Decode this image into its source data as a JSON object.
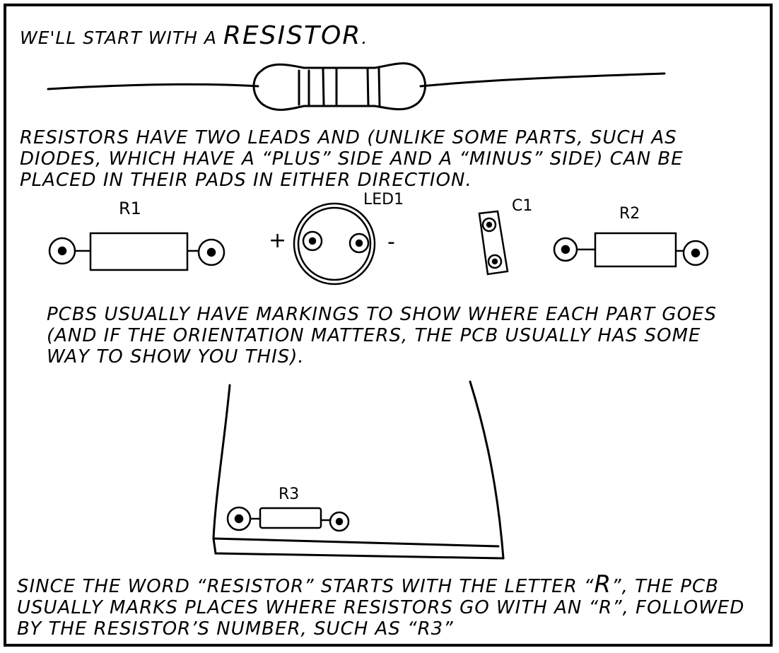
{
  "panel": {
    "line1_prefix": "WE'LL START WITH A ",
    "line1_emphasis": "RESISTOR",
    "line1_suffix": ".",
    "paragraph2": "RESISTORS HAVE TWO LEADS AND (UNLIKE SOME PARTS, SUCH AS DIODES, WHICH HAVE A “PLUS” SIDE AND A “MINUS” SIDE) CAN BE PLACED IN THEIR PADS IN EITHER DIRECTION.",
    "paragraph3": "PCBS USUALLY HAVE MARKINGS TO SHOW WHERE EACH PART GOES (AND IF THE ORIENTATION MATTERS, THE PCB USUALLY HAS SOME WAY TO SHOW YOU THIS).",
    "paragraph4_prefix": "SINCE THE WORD “RESISTOR” STARTS WITH THE LETTER “",
    "paragraph4_letter": "R",
    "paragraph4_suffix": "”, THE PCB USUALLY MARKS PLACES WHERE RESISTORS GO WITH AN “R”, FOLLOWED BY THE RESISTOR’S NUMBER, SUCH AS “R3”"
  },
  "silkscreen": {
    "r1": "R1",
    "led1": "LED1",
    "led_plus": "+",
    "led_minus": "-",
    "c1": "C1",
    "r2": "R2",
    "r3": "R3"
  },
  "colors": {
    "ink": "#000000",
    "paper": "#ffffff"
  },
  "icons": [
    "resistor-illustration",
    "resistor-footprint",
    "led-footprint",
    "capacitor-footprint",
    "pcb-board"
  ]
}
